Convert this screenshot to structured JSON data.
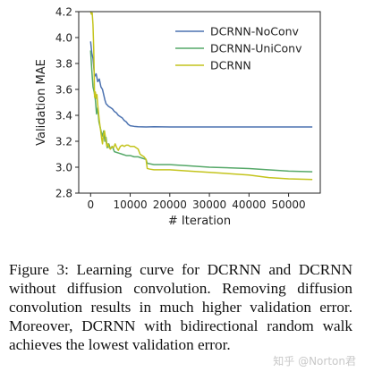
{
  "chart_data": {
    "type": "line",
    "xlabel": "# Iteration",
    "ylabel": "Validation MAE",
    "xlim": [
      -3000,
      58000
    ],
    "ylim": [
      2.8,
      4.2
    ],
    "xticks": [
      0,
      10000,
      20000,
      30000,
      40000,
      50000
    ],
    "xtick_labels": [
      "0",
      "10000",
      "20000",
      "30000",
      "40000",
      "50000"
    ],
    "yticks": [
      2.8,
      3.0,
      3.2,
      3.4,
      3.6,
      3.8,
      4.0,
      4.2
    ],
    "ytick_labels": [
      "2.8",
      "3.0",
      "3.2",
      "3.4",
      "3.6",
      "3.8",
      "4.0",
      "4.2"
    ],
    "legend_position": "top-right",
    "grid": false,
    "series": [
      {
        "name": "DCRNN-NoConv",
        "color": "#4c72b0",
        "x": [
          0,
          300,
          600,
          1000,
          1400,
          1800,
          2200,
          2600,
          3000,
          3300,
          3600,
          3900,
          4200,
          4500,
          5000,
          5500,
          6000,
          6500,
          7000,
          7500,
          8000,
          8500,
          9000,
          9500,
          10000,
          11000,
          12000,
          14000,
          16000,
          20000,
          30000,
          40000,
          50000,
          56000
        ],
        "y": [
          3.97,
          3.88,
          3.84,
          3.7,
          3.72,
          3.66,
          3.68,
          3.62,
          3.6,
          3.56,
          3.52,
          3.49,
          3.48,
          3.47,
          3.46,
          3.45,
          3.43,
          3.42,
          3.4,
          3.39,
          3.38,
          3.36,
          3.35,
          3.33,
          3.32,
          3.315,
          3.312,
          3.31,
          3.312,
          3.31,
          3.31,
          3.31,
          3.31,
          3.31
        ]
      },
      {
        "name": "DCRNN-UniConv",
        "color": "#55a868",
        "x": [
          0,
          300,
          600,
          900,
          1200,
          1500,
          1800,
          2100,
          2400,
          2700,
          3000,
          3300,
          3600,
          3900,
          4200,
          4600,
          5000,
          5500,
          6000,
          7000,
          8000,
          9000,
          10000,
          11000,
          12000,
          13000,
          14000,
          14300,
          16000,
          20000,
          25000,
          30000,
          40000,
          50000,
          56000
        ],
        "y": [
          3.9,
          3.75,
          3.62,
          3.58,
          3.52,
          3.41,
          3.46,
          3.35,
          3.31,
          3.27,
          3.24,
          3.28,
          3.2,
          3.23,
          3.15,
          3.18,
          3.14,
          3.16,
          3.12,
          3.11,
          3.1,
          3.09,
          3.09,
          3.08,
          3.08,
          3.07,
          3.06,
          3.03,
          3.02,
          3.02,
          3.01,
          3.0,
          2.99,
          2.97,
          2.965
        ]
      },
      {
        "name": "DCRNN",
        "color": "#c4c41d",
        "x": [
          0,
          200,
          400,
          600,
          800,
          1000,
          1200,
          1400,
          1600,
          1800,
          2000,
          2200,
          2500,
          2800,
          3000,
          3200,
          3500,
          3800,
          4100,
          4400,
          4700,
          5000,
          5400,
          5800,
          6200,
          6600,
          7000,
          7500,
          8000,
          8500,
          9000,
          9500,
          10000,
          11000,
          12000,
          12500,
          13000,
          13500,
          14000,
          14300,
          15000,
          16000,
          20000,
          25000,
          30000,
          35000,
          40000,
          45000,
          50000,
          56000
        ],
        "y": [
          4.2,
          4.18,
          4.19,
          4.1,
          3.9,
          3.54,
          3.58,
          3.53,
          3.56,
          3.48,
          3.42,
          3.36,
          3.29,
          3.22,
          3.18,
          3.24,
          3.28,
          3.22,
          3.16,
          3.18,
          3.15,
          3.14,
          3.16,
          3.15,
          3.18,
          3.15,
          3.13,
          3.16,
          3.17,
          3.16,
          3.17,
          3.17,
          3.16,
          3.16,
          3.14,
          3.1,
          3.09,
          3.08,
          3.06,
          2.99,
          2.985,
          2.98,
          2.98,
          2.97,
          2.96,
          2.95,
          2.94,
          2.92,
          2.91,
          2.905
        ]
      }
    ]
  },
  "caption": {
    "text": "Figure 3:  Learning curve for DCRNN and DCRNN without diffusion convolution. Removing diffusion convolution results in much higher validation error.  Moreover, DCRNN with bidirectional random walk achieves the lowest validation error."
  },
  "watermark": {
    "text": "知乎 @Norton君"
  }
}
